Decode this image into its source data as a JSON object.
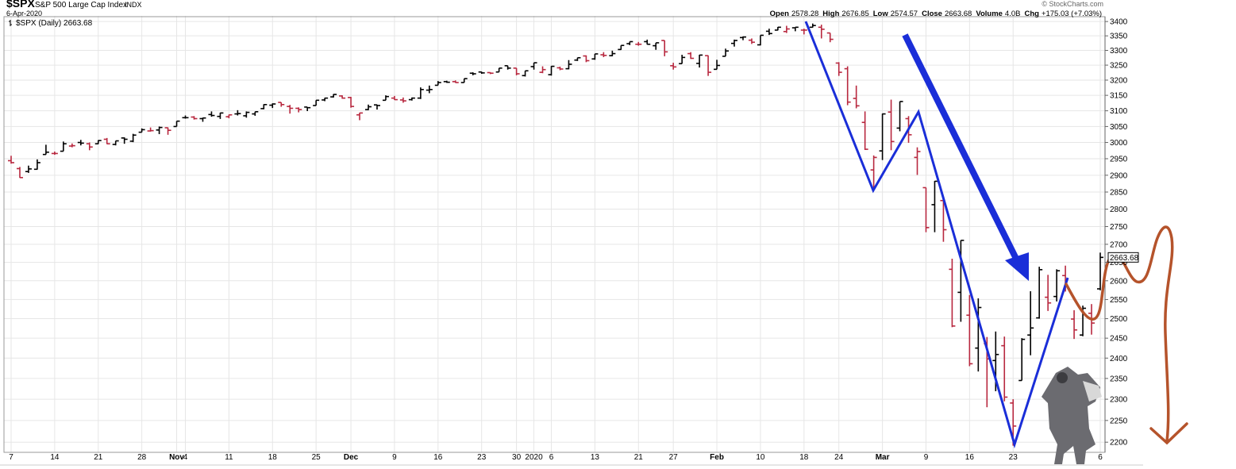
{
  "chart_data": {
    "type": "ohlc",
    "title": "$SPX",
    "subtitle": "S&P 500 Large Cap Index",
    "exchange": "INDX",
    "date": "6-Apr-2020",
    "credit": "© StockCharts.com",
    "legend": "$SPX (Daily) 2663.68",
    "header_labels": [
      "Open",
      "High",
      "Low",
      "Close",
      "Volume",
      "Chg"
    ],
    "volume": "4.0B",
    "change": "+175.03 (+7.03%)",
    "log_scale": true,
    "grid": true,
    "up_color": "#000000",
    "down_color": "#b8283f",
    "ylim": [
      2177,
      3420
    ],
    "yticks": [
      2200,
      2250,
      2300,
      2350,
      2400,
      2450,
      2500,
      2550,
      2600,
      2650,
      2700,
      2750,
      2800,
      2850,
      2900,
      2950,
      3000,
      3050,
      3100,
      3150,
      3200,
      3250,
      3300,
      3350,
      3400
    ],
    "categories": [
      "7",
      null,
      null,
      null,
      null,
      "14",
      null,
      null,
      null,
      null,
      "21",
      null,
      null,
      null,
      null,
      "28",
      null,
      null,
      null,
      "Nov",
      "4",
      null,
      null,
      null,
      null,
      "11",
      null,
      null,
      null,
      null,
      "18",
      null,
      null,
      null,
      null,
      "25",
      null,
      null,
      null,
      "Dec",
      null,
      null,
      null,
      null,
      "9",
      null,
      null,
      null,
      null,
      "16",
      null,
      null,
      null,
      null,
      "23",
      null,
      null,
      null,
      "30",
      null,
      "2020",
      null,
      "6",
      null,
      null,
      null,
      null,
      "13",
      null,
      null,
      null,
      null,
      "21",
      null,
      null,
      null,
      "27",
      null,
      null,
      null,
      null,
      "Feb",
      null,
      null,
      null,
      null,
      "10",
      null,
      null,
      null,
      null,
      "18",
      null,
      null,
      null,
      "24",
      null,
      null,
      null,
      null,
      "Mar",
      null,
      null,
      null,
      null,
      "9",
      null,
      null,
      null,
      null,
      "16",
      null,
      null,
      null,
      null,
      "23",
      null,
      null,
      null,
      null,
      null,
      null,
      null,
      null,
      null,
      "6"
    ],
    "open": [
      2944,
      2920,
      2911,
      2918,
      2963,
      2966,
      2973,
      2989,
      3000,
      2996,
      2996,
      3010,
      2994,
      3014,
      3004,
      3032,
      3036,
      3039,
      3046,
      3050,
      3078,
      3080,
      3075,
      3088,
      3082,
      3081,
      3090,
      3084,
      3090,
      3107,
      3118,
      3127,
      3114,
      3108,
      3112,
      3117,
      3135,
      3145,
      3148,
      3143,
      3087,
      3104,
      3119,
      3134,
      3141,
      3135,
      3136,
      3141,
      3167,
      3183,
      3195,
      3195,
      3192,
      3223,
      3227,
      3225,
      3227,
      3248,
      3240,
      3215,
      3245,
      3226,
      3218,
      3241,
      3238,
      3267,
      3281,
      3271,
      3285,
      3282,
      3303,
      3323,
      3321,
      3330,
      3316,
      3334,
      3248,
      3255,
      3289,
      3256,
      3282,
      3236,
      3280,
      3324,
      3344,
      3335,
      3319,
      3366,
      3370,
      3365,
      3378,
      3370,
      3380,
      3380,
      3360,
      3257,
      3238,
      3140,
      3063,
      2916,
      2974,
      3096,
      3045,
      3075,
      2954,
      2863,
      2813,
      2825,
      2631,
      2569,
      2509,
      2425,
      2436,
      2394,
      2431,
      2291,
      2345,
      2458,
      2502,
      2556,
      2558,
      2614,
      2499,
      2458,
      2514,
      2578.28
    ],
    "high": [
      2959,
      2925,
      2929,
      2948,
      2993,
      2972,
      3003,
      2997,
      3008,
      3000,
      3007,
      3014,
      3005,
      3016,
      3027,
      3044,
      3047,
      3050,
      3047,
      3067,
      3085,
      3083,
      3078,
      3098,
      3094,
      3088,
      3102,
      3098,
      3097,
      3121,
      3124,
      3127,
      3119,
      3111,
      3112,
      3134,
      3142,
      3154,
      3150,
      3145,
      3094,
      3120,
      3120,
      3150,
      3148,
      3143,
      3143,
      3176,
      3182,
      3197,
      3198,
      3199,
      3205,
      3226,
      3228,
      3226,
      3240,
      3248,
      3240,
      3231,
      3258,
      3246,
      3247,
      3245,
      3267,
      3275,
      3283,
      3288,
      3294,
      3299,
      3317,
      3330,
      3329,
      3337,
      3326,
      3334,
      3258,
      3285,
      3294,
      3285,
      3283,
      3268,
      3306,
      3337,
      3348,
      3341,
      3352,
      3375,
      3381,
      3385,
      3380,
      3375,
      3393,
      3389,
      3360,
      3260,
      3246,
      3182,
      3098,
      2960,
      3091,
      3136,
      3130,
      3083,
      2985,
      2863,
      2883,
      2825,
      2660,
      2711,
      2562,
      2553,
      2453,
      2467,
      2454,
      2300,
      2450,
      2572,
      2638,
      2616,
      2631,
      2641,
      2522,
      2534,
      2538,
      2676.85
    ],
    "low": [
      2935,
      2892,
      2907,
      2917,
      2963,
      2962,
      2973,
      2985,
      2991,
      2976,
      2995,
      2995,
      2991,
      2996,
      3001,
      3032,
      3034,
      3026,
      3024,
      3050,
      3075,
      3072,
      3065,
      3081,
      3074,
      3076,
      3085,
      3078,
      3084,
      3105,
      3109,
      3113,
      3091,
      3095,
      3099,
      3117,
      3131,
      3143,
      3139,
      3110,
      3070,
      3102,
      3104,
      3134,
      3135,
      3126,
      3133,
      3138,
      3157,
      3183,
      3191,
      3191,
      3192,
      3216,
      3221,
      3220,
      3227,
      3235,
      3216,
      3212,
      3235,
      3223,
      3215,
      3233,
      3236,
      3264,
      3260,
      3268,
      3277,
      3280,
      3302,
      3318,
      3316,
      3320,
      3302,
      3280,
      3235,
      3255,
      3271,
      3242,
      3214,
      3236,
      3280,
      3313,
      3335,
      3322,
      3317,
      3353,
      3369,
      3360,
      3366,
      3355,
      3379,
      3341,
      3328,
      3214,
      3118,
      3108,
      2977,
      2855,
      2946,
      2976,
      3035,
      2999,
      2901,
      2734,
      2734,
      2707,
      2478,
      2492,
      2380,
      2367,
      2281,
      2319,
      2295,
      2192,
      2345,
      2407,
      2500,
      2520,
      2545,
      2571,
      2448,
      2455,
      2459,
      2574.57
    ],
    "close": [
      2938,
      2893,
      2919,
      2938,
      2970,
      2966,
      2996,
      2990,
      2998,
      2986,
      3006,
      2996,
      3005,
      3010,
      3023,
      3040,
      3037,
      3047,
      3038,
      3067,
      3078,
      3075,
      3077,
      3085,
      3093,
      3087,
      3091,
      3095,
      3097,
      3120,
      3122,
      3120,
      3108,
      3104,
      3110,
      3134,
      3141,
      3153,
      3141,
      3114,
      3093,
      3113,
      3117,
      3146,
      3136,
      3132,
      3141,
      3169,
      3169,
      3192,
      3193,
      3192,
      3205,
      3221,
      3224,
      3223,
      3240,
      3240,
      3221,
      3231,
      3258,
      3235,
      3246,
      3237,
      3253,
      3275,
      3265,
      3288,
      3283,
      3289,
      3317,
      3330,
      3321,
      3321,
      3326,
      3295,
      3244,
      3276,
      3273,
      3284,
      3226,
      3249,
      3298,
      3334,
      3346,
      3328,
      3352,
      3358,
      3380,
      3374,
      3380,
      3370,
      3386,
      3373,
      3338,
      3226,
      3128,
      3116,
      2979,
      2954,
      3090,
      3003,
      3130,
      3024,
      2972,
      2747,
      2882,
      2741,
      2481,
      2711,
      2386,
      2529,
      2398,
      2409,
      2305,
      2237,
      2447,
      2476,
      2630,
      2541,
      2627,
      2585,
      2471,
      2527,
      2488.65,
      2663.68
    ]
  }
}
